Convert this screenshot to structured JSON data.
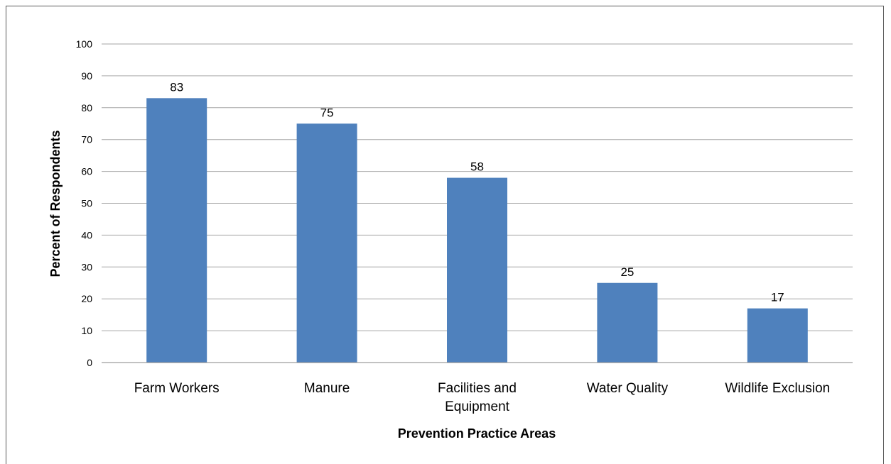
{
  "chart_data": {
    "type": "bar",
    "categories": [
      "Farm Workers",
      "Manure",
      "Facilities and Equipment",
      "Water Quality",
      "Wildlife Exclusion"
    ],
    "category_lines": [
      [
        "Farm Workers"
      ],
      [
        "Manure"
      ],
      [
        "Facilities and",
        "Equipment"
      ],
      [
        "Water Quality"
      ],
      [
        "Wildlife Exclusion"
      ]
    ],
    "values": [
      83,
      75,
      58,
      25,
      17
    ],
    "data_labels": [
      "83",
      "75",
      "58",
      "25",
      "17"
    ],
    "title": "",
    "xlabel": "Prevention Practice Areas",
    "ylabel": "Percent of Respondents",
    "ylim": [
      0,
      100
    ],
    "yticks": [
      0,
      10,
      20,
      30,
      40,
      50,
      60,
      70,
      80,
      90,
      100
    ],
    "grid": true,
    "legend": "none",
    "bar_color": "#4f81bd",
    "grid_color": "#a6a6a6"
  }
}
